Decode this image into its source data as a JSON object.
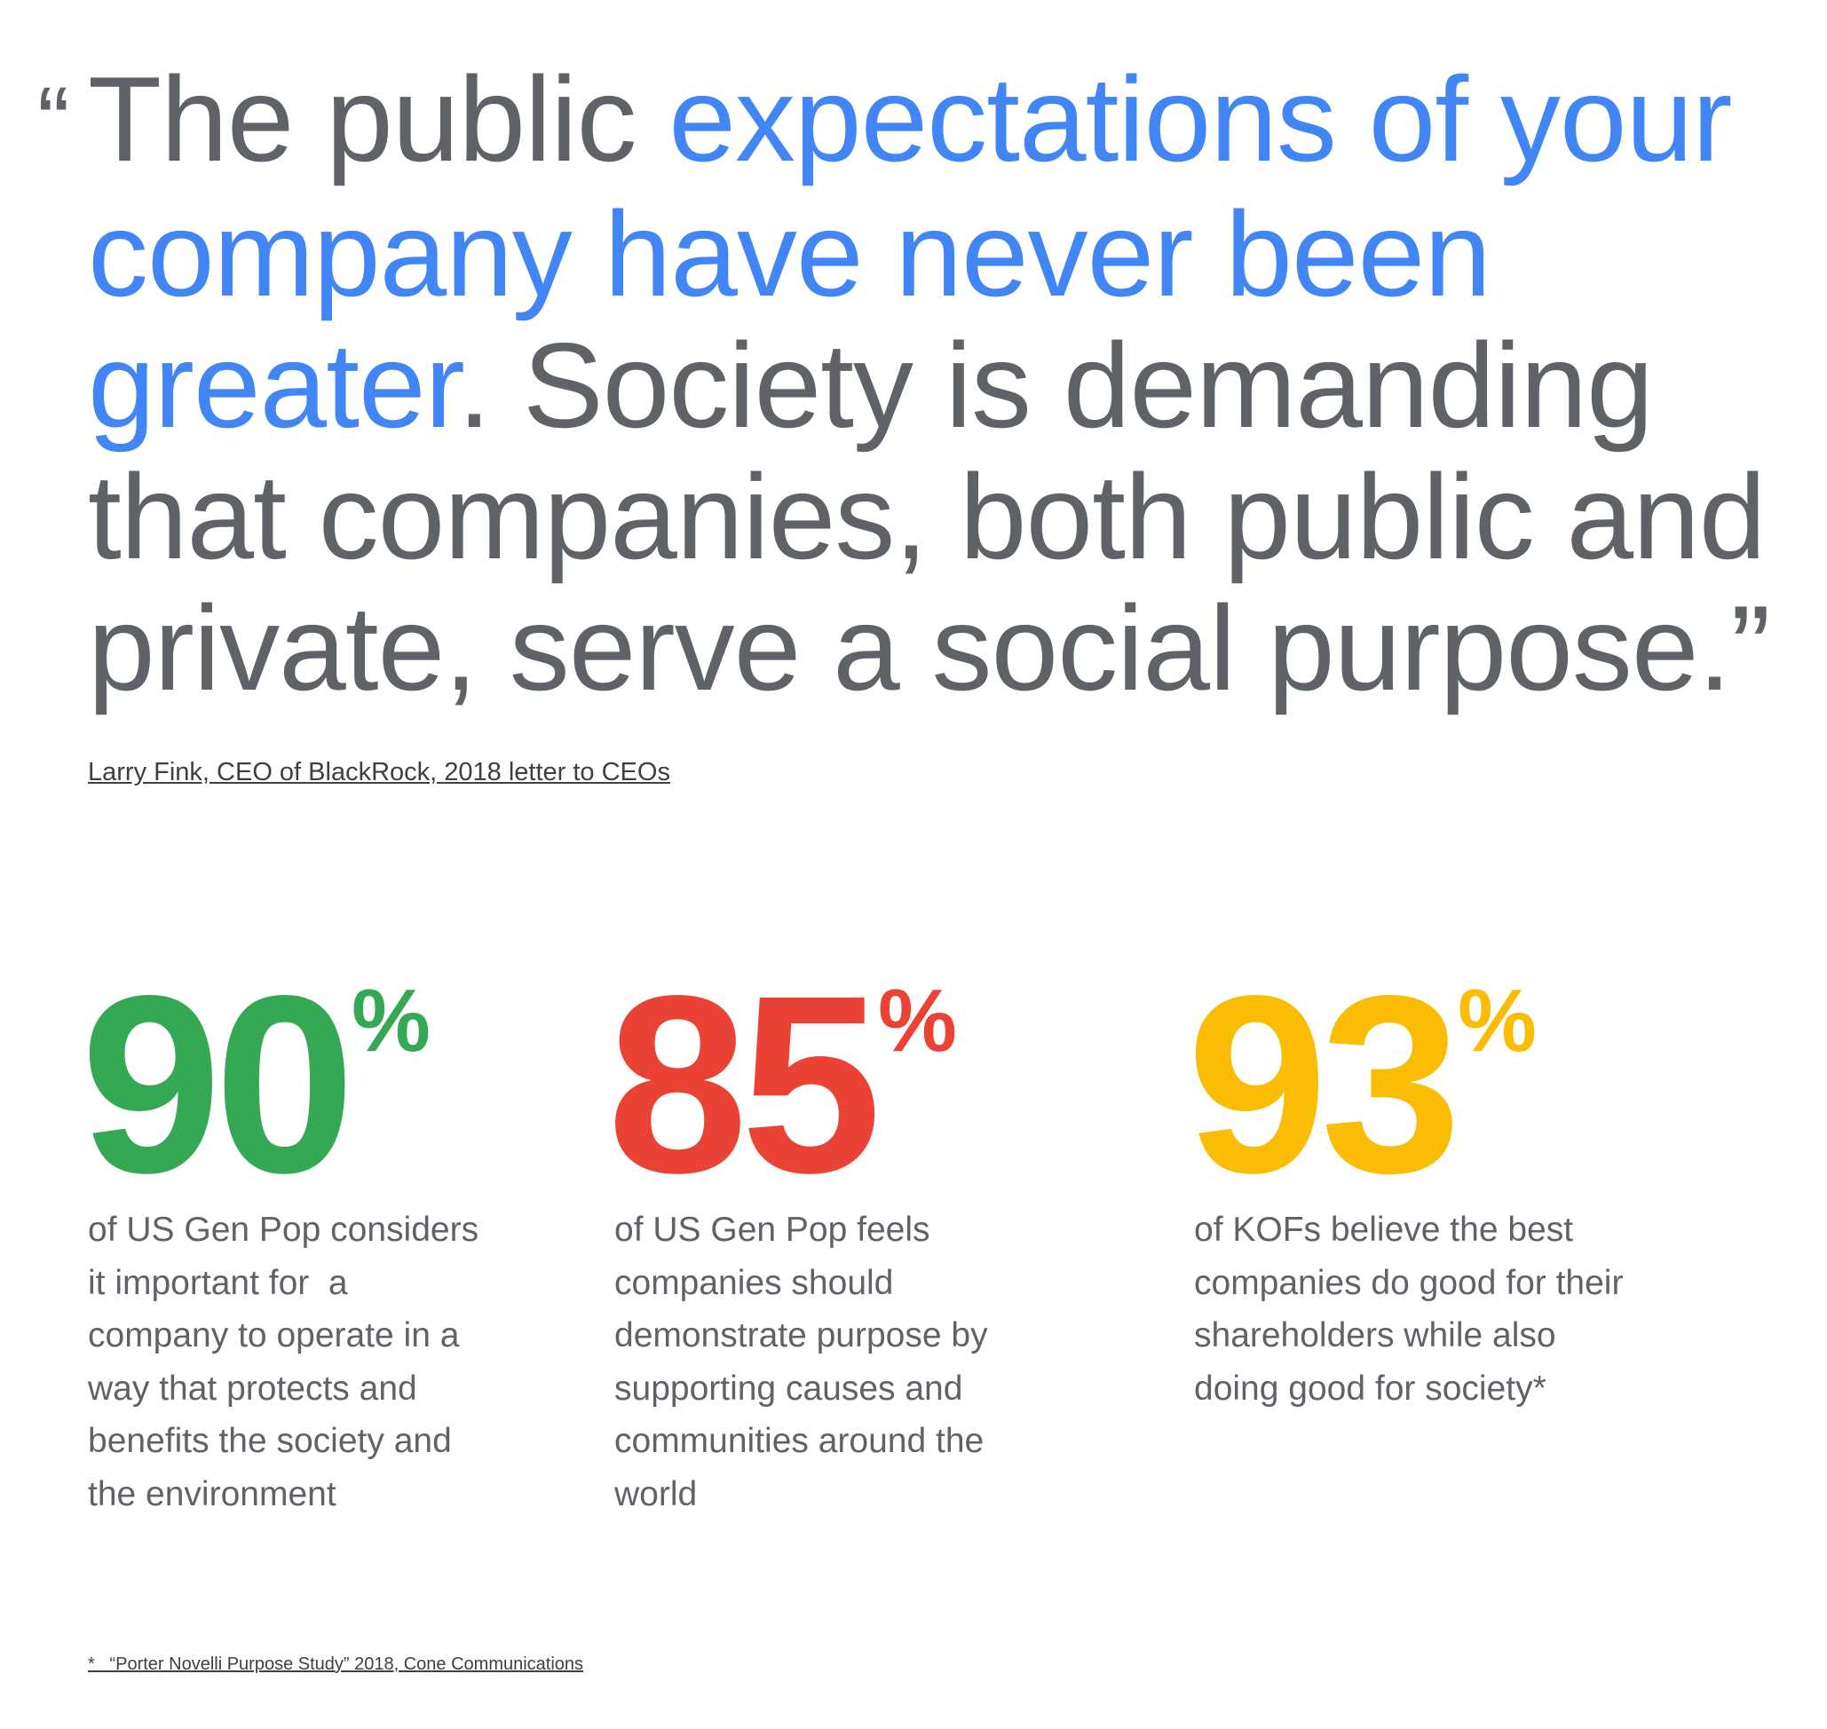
{
  "quote": {
    "open_mark": "“",
    "lines": [
      [
        {
          "text": "The public ",
          "color": "#5f6368"
        },
        {
          "text": "expectations of your",
          "color": "#4285f4"
        }
      ],
      [
        {
          "text": "company have never been",
          "color": "#4285f4"
        }
      ],
      [
        {
          "text": "greater",
          "color": "#4285f4"
        },
        {
          "text": ". Society is demanding",
          "color": "#5f6368"
        }
      ],
      [
        {
          "text": "that companies, both public and",
          "color": "#5f6368"
        }
      ],
      [
        {
          "text": "private, serve a social purpose.”",
          "color": "#5f6368"
        }
      ]
    ],
    "attribution": "Larry Fink, CEO of BlackRock, 2018 letter to CEOs"
  },
  "stats": [
    {
      "value": "90",
      "unit": "%",
      "color": "#34a853",
      "description": [
        "of US Gen Pop considers",
        "it important for  a",
        "company to operate in a",
        "way that protects and",
        "benefits the society and",
        "the environment"
      ]
    },
    {
      "value": "85",
      "unit": "%",
      "color": "#ea4335",
      "description": [
        "of US Gen Pop feels",
        "companies should",
        "demonstrate purpose by",
        "supporting causes and",
        "communities around the",
        "world"
      ]
    },
    {
      "value": "93",
      "unit": "%",
      "color": "#fbbc04",
      "description": [
        "of KOFs believe the best",
        "companies do good for their",
        "shareholders while also",
        "doing good for society*"
      ]
    }
  ],
  "footnote": "*   “Porter Novelli Purpose Study” 2018, Cone Communications"
}
